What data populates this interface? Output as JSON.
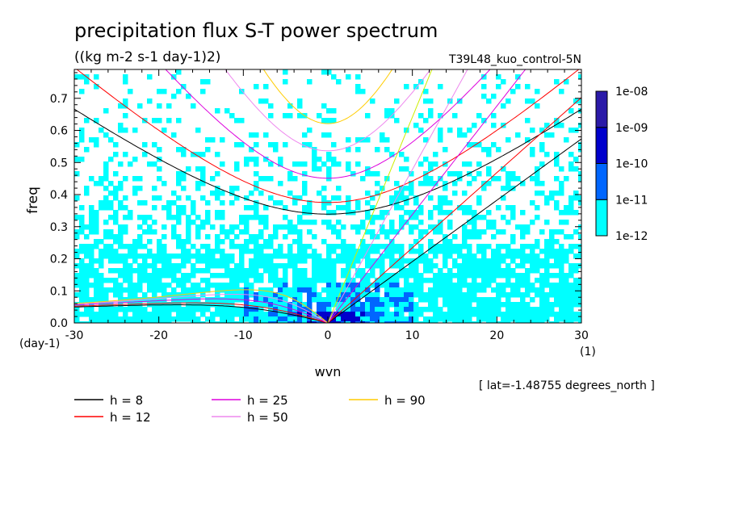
{
  "chart_data": {
    "type": "heatmap",
    "title": "precipitation flux S-T power spectrum",
    "subtitle": "((kg m-2 s-1 day-1)2)",
    "run_label": "T39L48_kuo_control-5N",
    "xlabel": "wvn",
    "ylabel": "freq",
    "x_unit": "(1)",
    "y_unit": "(day-1)",
    "xlim": [
      -30,
      30
    ],
    "ylim": [
      0,
      0.79
    ],
    "x_ticks": [
      "-30",
      "-20",
      "-10",
      "0",
      "10",
      "20",
      "30"
    ],
    "y_ticks": [
      "0.0",
      "0.1",
      "0.2",
      "0.3",
      "0.4",
      "0.5",
      "0.6",
      "0.7"
    ],
    "footnote": "[ lat=-1.48755 degrees_north ]",
    "colorbar": {
      "levels": [
        "1e-12",
        "1e-11",
        "1e-10",
        "1e-09",
        "1e-08"
      ],
      "colors": [
        "#00ffff",
        "#0066ff",
        "#0000cc",
        "#2b1aa8"
      ]
    },
    "field_description_colors": {
      "background": "#ffffff"
    },
    "series": [
      {
        "name": "h =  8",
        "h": 8,
        "color": "#000000"
      },
      {
        "name": "h = 12",
        "h": 12,
        "color": "#ff0000"
      },
      {
        "name": "h = 25",
        "h": 25,
        "color": "#dd00dd"
      },
      {
        "name": "h = 50",
        "h": 50,
        "color": "#ee88ee"
      },
      {
        "name": "h = 90",
        "h": 90,
        "color": "#ffcc00"
      }
    ],
    "curve_series_colors_extra": {
      "kelvin_h90": "#ccee00"
    },
    "grid": false,
    "legend_placement": "bottom"
  }
}
